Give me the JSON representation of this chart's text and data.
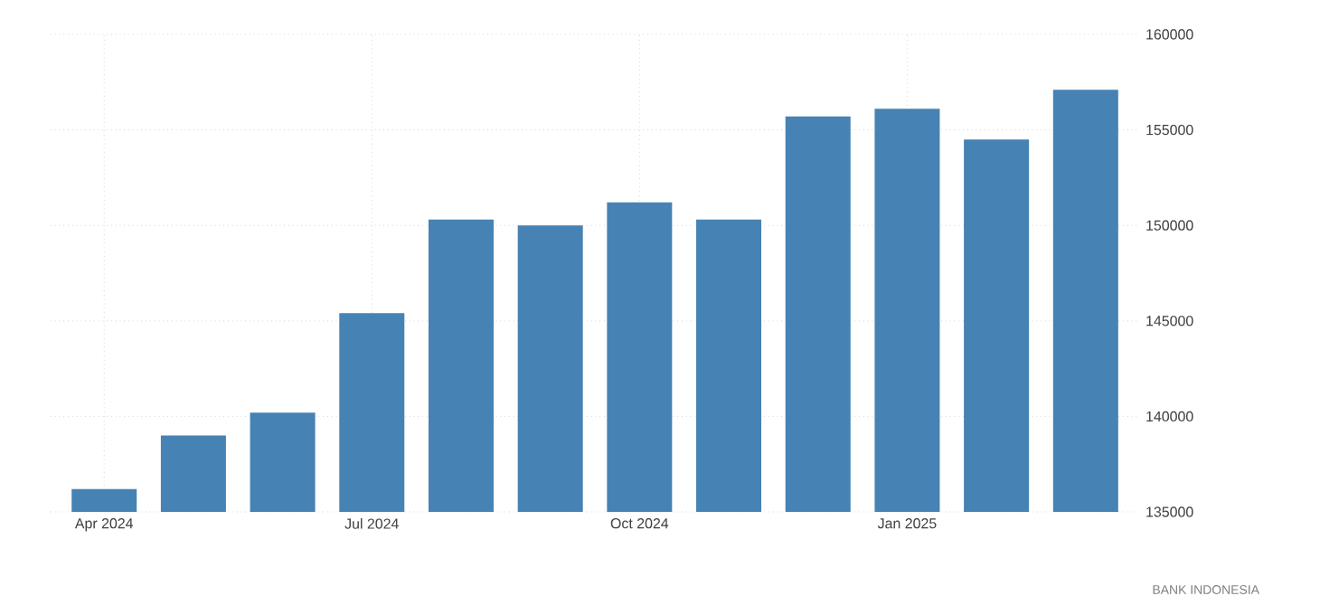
{
  "chart_data": {
    "type": "bar",
    "categories": [
      "Apr 2024",
      null,
      null,
      "Jul 2024",
      null,
      null,
      "Oct 2024",
      null,
      null,
      "Jan 2025",
      null,
      null
    ],
    "values": [
      136200,
      139000,
      140200,
      145400,
      150300,
      150000,
      151200,
      150300,
      155700,
      156100,
      154500,
      157100
    ],
    "color": "#4682b4",
    "ylim": [
      135000,
      160000
    ],
    "yticks": [
      135000,
      140000,
      145000,
      150000,
      155000,
      160000
    ],
    "grid": true,
    "annotations": [
      "BANK INDONESIA"
    ]
  }
}
